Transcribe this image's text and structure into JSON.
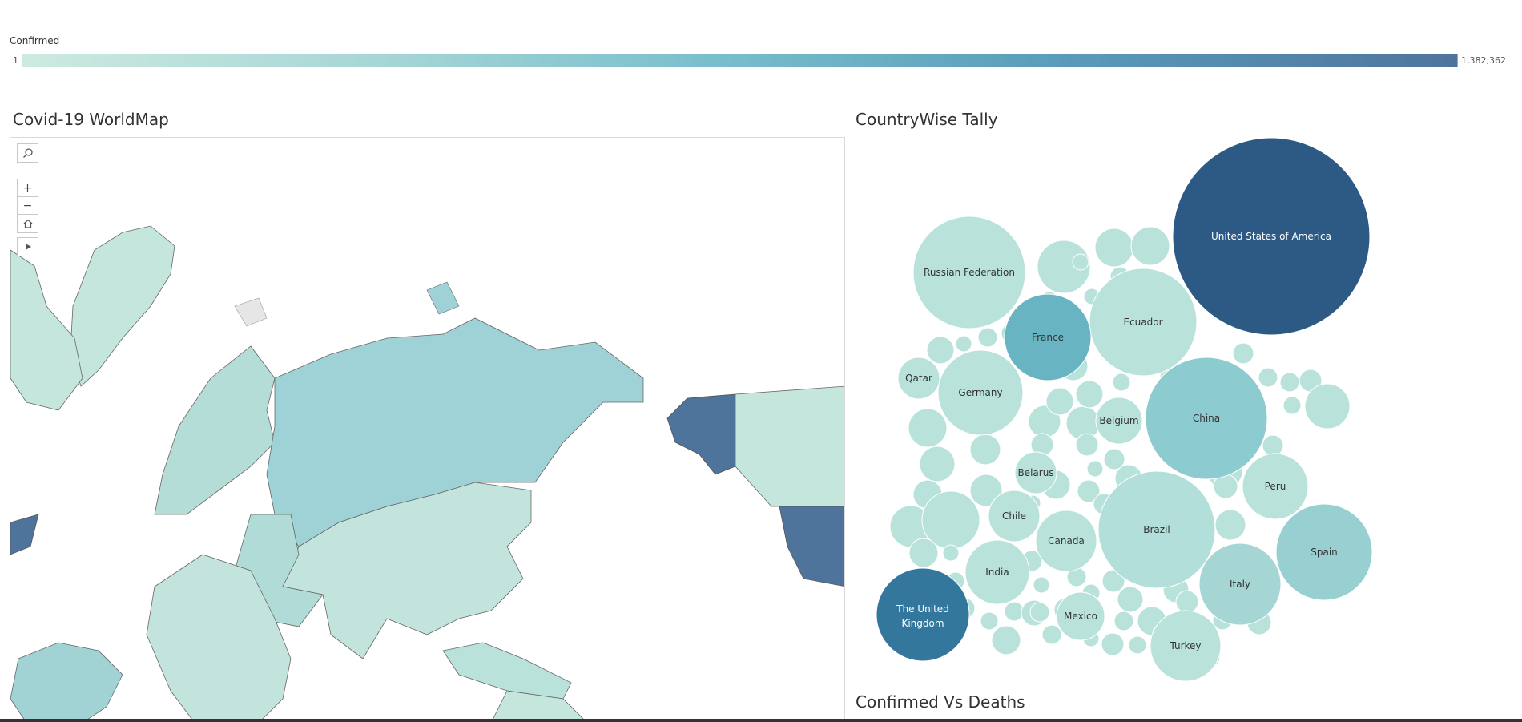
{
  "legend": {
    "title": "Confirmed",
    "min_label": "1",
    "max_label": "1,382,362",
    "colors": [
      "#cdeae0",
      "#a6d6d6",
      "#76bccb",
      "#5a9cb9",
      "#4f749b"
    ]
  },
  "worksheets": {
    "map_title": "Covid-19 WorldMap",
    "tally_title": "CountryWise Tally",
    "cvd_title": "Confirmed Vs Deaths"
  },
  "map_tools": {
    "search": "search-icon",
    "zoom_in": "+",
    "zoom_out": "−",
    "home": "home-icon",
    "expand": "play-icon"
  },
  "chart_data": {
    "type": "bubble",
    "colors": {
      "United States of America": "#2d5a85",
      "The United Kingdom": "#34779c",
      "France": "#68b4c3",
      "China": "#8ccbd0",
      "Spain": "#98d0d2",
      "Italy": "#a6d6d4",
      "Brazil": "#b2dfd9",
      "Russian Federation": "#b8e2da",
      "default": "#b9e3da"
    },
    "bubbles": [
      {
        "label": "United States of America"
      },
      {
        "label": "Russian Federation"
      },
      {
        "label": "Ecuador"
      },
      {
        "label": "France"
      },
      {
        "label": "Qatar"
      },
      {
        "label": "Germany"
      },
      {
        "label": "Belgium"
      },
      {
        "label": "China"
      },
      {
        "label": "Belarus"
      },
      {
        "label": "Peru"
      },
      {
        "label": "Chile"
      },
      {
        "label": "Canada"
      },
      {
        "label": "Brazil"
      },
      {
        "label": "Spain"
      },
      {
        "label": "India"
      },
      {
        "label": "Italy"
      },
      {
        "label": "The United Kingdom"
      },
      {
        "label": "Mexico"
      },
      {
        "label": "Turkey"
      }
    ]
  }
}
